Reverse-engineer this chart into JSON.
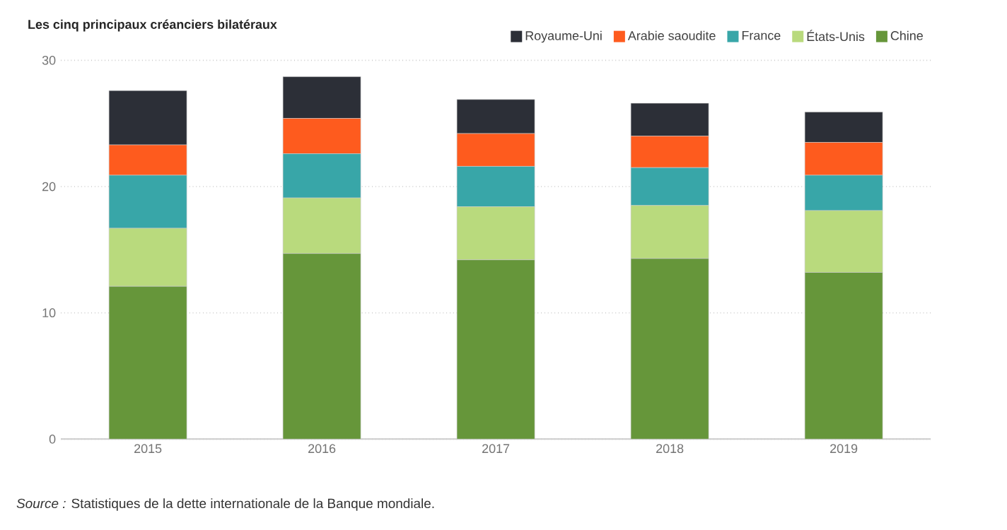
{
  "chart_data": {
    "type": "bar",
    "stacked": true,
    "title": "Les cinq principaux créanciers bilatéraux",
    "categories": [
      "2015",
      "2016",
      "2017",
      "2018",
      "2019"
    ],
    "series": [
      {
        "name": "Chine",
        "color": "#66963a",
        "values": [
          12.1,
          14.7,
          14.2,
          14.3,
          13.2
        ]
      },
      {
        "name": "États-Unis",
        "color": "#b9da7d",
        "values": [
          4.6,
          4.4,
          4.2,
          4.2,
          4.9
        ]
      },
      {
        "name": "France",
        "color": "#38a6a8",
        "values": [
          4.2,
          3.5,
          3.2,
          3.0,
          2.8
        ]
      },
      {
        "name": "Arabie saoudite",
        "color": "#fe5b1e",
        "values": [
          2.4,
          2.8,
          2.6,
          2.5,
          2.6
        ]
      },
      {
        "name": "Royaume-Uni",
        "color": "#2c2f37",
        "values": [
          4.3,
          3.3,
          2.7,
          2.6,
          2.4
        ]
      }
    ],
    "ylim": [
      0,
      30
    ],
    "yticks": [
      0,
      10,
      20,
      30
    ],
    "grid": "y",
    "legend": "top right",
    "annotations": [
      "*Source :* Statistiques de la dette internationale de la Banque mondiale."
    ]
  }
}
